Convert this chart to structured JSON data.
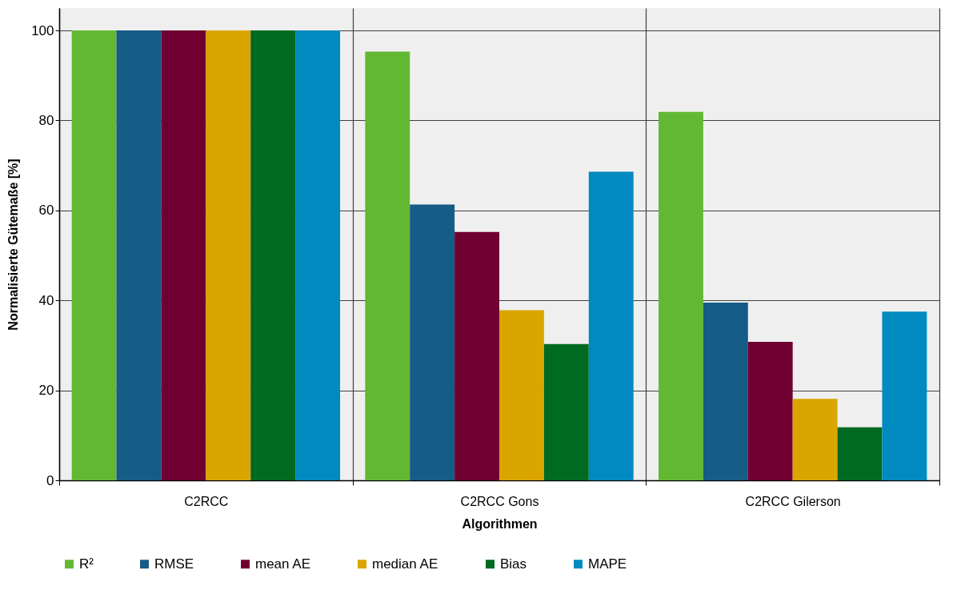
{
  "chart_data": {
    "type": "bar",
    "xlabel": "Algorithmen",
    "ylabel": "Normalisierte Gütemaße [%]",
    "categories": [
      "C2RCC",
      "C2RCC Gons",
      "C2RCC Gilerson"
    ],
    "series": [
      {
        "name": "R²",
        "color": "#62b832",
        "values": [
          100,
          95.3,
          81.9
        ]
      },
      {
        "name": "RMSE",
        "color": "#155c86",
        "values": [
          100,
          61.3,
          39.5
        ]
      },
      {
        "name": "mean AE",
        "color": "#710032",
        "values": [
          100,
          55.2,
          30.8
        ]
      },
      {
        "name": "median AE",
        "color": "#dba500",
        "values": [
          100,
          37.8,
          18.1
        ]
      },
      {
        "name": "Bias",
        "color": "#006a22",
        "values": [
          100,
          30.3,
          11.8
        ]
      },
      {
        "name": "MAPE",
        "color": "#008abf",
        "values": [
          100,
          68.6,
          37.5
        ]
      }
    ],
    "ylim": [
      0,
      105
    ],
    "yticks": [
      0,
      20,
      40,
      60,
      80,
      100
    ],
    "grid": true,
    "legend": "bottom"
  }
}
